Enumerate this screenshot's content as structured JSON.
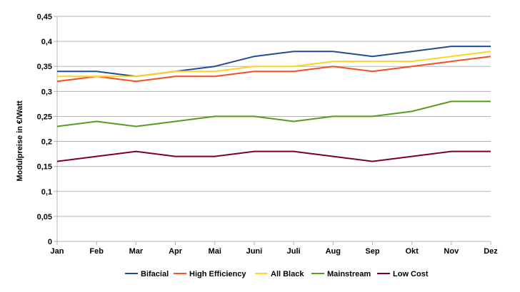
{
  "chart_data": {
    "type": "line",
    "title": "",
    "xlabel": "",
    "ylabel": "Modulpreise in €/Watt",
    "categories": [
      "Jan",
      "Feb",
      "Mar",
      "Apr",
      "Mai",
      "Juni",
      "Juli",
      "Aug",
      "Sep",
      "Okt",
      "Nov",
      "Dez"
    ],
    "ylim": [
      0,
      0.45
    ],
    "y_ticks": [
      0,
      0.05,
      0.1,
      0.15,
      0.2,
      0.25,
      0.3,
      0.35,
      0.4,
      0.45
    ],
    "y_tick_labels": [
      "0",
      "0,05",
      "0,1",
      "0,15",
      "0,2",
      "0,25",
      "0,3",
      "0,35",
      "0,4",
      "0,45"
    ],
    "grid": true,
    "legend": "bottom",
    "series": [
      {
        "name": "Bifacial",
        "color": "#1f4e96",
        "values": [
          0.34,
          0.34,
          0.33,
          0.34,
          0.35,
          0.37,
          0.38,
          0.38,
          0.37,
          0.38,
          0.39,
          0.39
        ]
      },
      {
        "name": "High Efficiency",
        "color": "#f25022",
        "values": [
          0.32,
          0.33,
          0.32,
          0.33,
          0.33,
          0.34,
          0.34,
          0.35,
          0.34,
          0.35,
          0.36,
          0.37
        ]
      },
      {
        "name": "All Black",
        "color": "#ffd320",
        "values": [
          0.33,
          0.33,
          0.33,
          0.34,
          0.34,
          0.35,
          0.35,
          0.36,
          0.36,
          0.36,
          0.37,
          0.38
        ]
      },
      {
        "name": "Mainstream",
        "color": "#579d1c",
        "values": [
          0.23,
          0.24,
          0.23,
          0.24,
          0.25,
          0.25,
          0.24,
          0.25,
          0.25,
          0.26,
          0.28,
          0.28
        ]
      },
      {
        "name": "Low Cost",
        "color": "#7e0021",
        "values": [
          0.16,
          0.17,
          0.18,
          0.17,
          0.17,
          0.18,
          0.18,
          0.17,
          0.16,
          0.17,
          0.18,
          0.18
        ]
      }
    ]
  }
}
